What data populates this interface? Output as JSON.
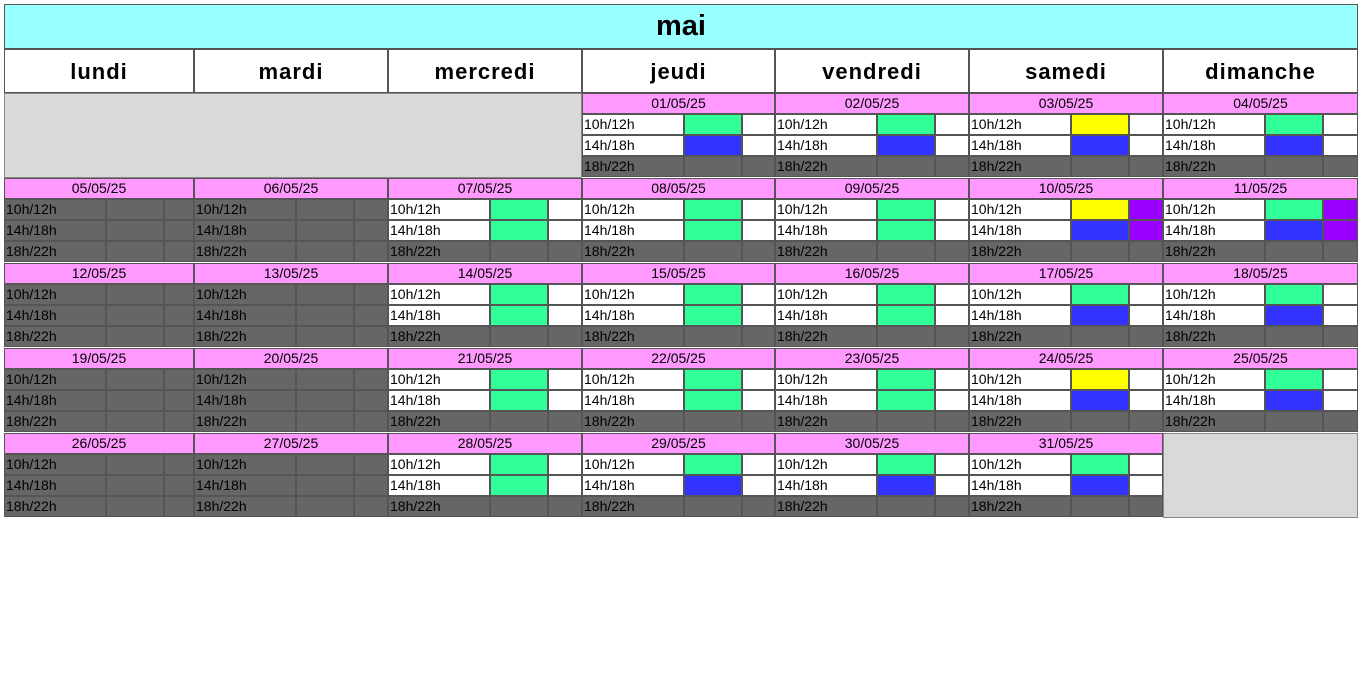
{
  "month_title": "mai",
  "weekdays": [
    "lundi",
    "mardi",
    "mercredi",
    "jeudi",
    "vendredi",
    "samedi",
    "dimanche"
  ],
  "colors": {
    "closed": "#666666",
    "open": "#ffffff",
    "green": "#33ff99",
    "blue": "#3333ff",
    "yellow": "#ffff00",
    "purple": "#9900ff",
    "header_month": "#99ffff",
    "date_bar": "#ff99ff",
    "blank": "#d9d9d9"
  },
  "slot_labels": [
    "10h/12h",
    "14h/18h",
    "18h/22h"
  ],
  "weeks": [
    [
      null,
      null,
      null,
      {
        "date": "01/05/25",
        "slots": [
          {
            "open": true,
            "c1": "green",
            "c2": "open"
          },
          {
            "open": true,
            "c1": "blue",
            "c2": "open"
          },
          {
            "open": false,
            "c1": "closed",
            "c2": "closed"
          }
        ]
      },
      {
        "date": "02/05/25",
        "slots": [
          {
            "open": true,
            "c1": "green",
            "c2": "open"
          },
          {
            "open": true,
            "c1": "blue",
            "c2": "open"
          },
          {
            "open": false,
            "c1": "closed",
            "c2": "closed"
          }
        ]
      },
      {
        "date": "03/05/25",
        "slots": [
          {
            "open": true,
            "c1": "yellow",
            "c2": "open"
          },
          {
            "open": true,
            "c1": "blue",
            "c2": "open"
          },
          {
            "open": false,
            "c1": "closed",
            "c2": "closed"
          }
        ]
      },
      {
        "date": "04/05/25",
        "slots": [
          {
            "open": true,
            "c1": "green",
            "c2": "open"
          },
          {
            "open": true,
            "c1": "blue",
            "c2": "open"
          },
          {
            "open": false,
            "c1": "closed",
            "c2": "closed"
          }
        ]
      }
    ],
    [
      {
        "date": "05/05/25",
        "slots": [
          {
            "open": false,
            "c1": "closed",
            "c2": "closed"
          },
          {
            "open": false,
            "c1": "closed",
            "c2": "closed"
          },
          {
            "open": false,
            "c1": "closed",
            "c2": "closed"
          }
        ]
      },
      {
        "date": "06/05/25",
        "slots": [
          {
            "open": false,
            "c1": "closed",
            "c2": "closed"
          },
          {
            "open": false,
            "c1": "closed",
            "c2": "closed"
          },
          {
            "open": false,
            "c1": "closed",
            "c2": "closed"
          }
        ]
      },
      {
        "date": "07/05/25",
        "slots": [
          {
            "open": true,
            "c1": "green",
            "c2": "open"
          },
          {
            "open": true,
            "c1": "green",
            "c2": "open"
          },
          {
            "open": false,
            "c1": "closed",
            "c2": "closed"
          }
        ]
      },
      {
        "date": "08/05/25",
        "slots": [
          {
            "open": true,
            "c1": "green",
            "c2": "open"
          },
          {
            "open": true,
            "c1": "green",
            "c2": "open"
          },
          {
            "open": false,
            "c1": "closed",
            "c2": "closed"
          }
        ]
      },
      {
        "date": "09/05/25",
        "slots": [
          {
            "open": true,
            "c1": "green",
            "c2": "open"
          },
          {
            "open": true,
            "c1": "green",
            "c2": "open"
          },
          {
            "open": false,
            "c1": "closed",
            "c2": "closed"
          }
        ]
      },
      {
        "date": "10/05/25",
        "slots": [
          {
            "open": true,
            "c1": "yellow",
            "c2": "purple"
          },
          {
            "open": true,
            "c1": "blue",
            "c2": "purple"
          },
          {
            "open": false,
            "c1": "closed",
            "c2": "closed"
          }
        ]
      },
      {
        "date": "11/05/25",
        "slots": [
          {
            "open": true,
            "c1": "green",
            "c2": "purple"
          },
          {
            "open": true,
            "c1": "blue",
            "c2": "purple"
          },
          {
            "open": false,
            "c1": "closed",
            "c2": "closed"
          }
        ]
      }
    ],
    [
      {
        "date": "12/05/25",
        "slots": [
          {
            "open": false,
            "c1": "closed",
            "c2": "closed"
          },
          {
            "open": false,
            "c1": "closed",
            "c2": "closed"
          },
          {
            "open": false,
            "c1": "closed",
            "c2": "closed"
          }
        ]
      },
      {
        "date": "13/05/25",
        "slots": [
          {
            "open": false,
            "c1": "closed",
            "c2": "closed"
          },
          {
            "open": false,
            "c1": "closed",
            "c2": "closed"
          },
          {
            "open": false,
            "c1": "closed",
            "c2": "closed"
          }
        ]
      },
      {
        "date": "14/05/25",
        "slots": [
          {
            "open": true,
            "c1": "green",
            "c2": "open"
          },
          {
            "open": true,
            "c1": "green",
            "c2": "open"
          },
          {
            "open": false,
            "c1": "closed",
            "c2": "closed"
          }
        ]
      },
      {
        "date": "15/05/25",
        "slots": [
          {
            "open": true,
            "c1": "green",
            "c2": "open"
          },
          {
            "open": true,
            "c1": "green",
            "c2": "open"
          },
          {
            "open": false,
            "c1": "closed",
            "c2": "closed"
          }
        ]
      },
      {
        "date": "16/05/25",
        "slots": [
          {
            "open": true,
            "c1": "green",
            "c2": "open"
          },
          {
            "open": true,
            "c1": "green",
            "c2": "open"
          },
          {
            "open": false,
            "c1": "closed",
            "c2": "closed"
          }
        ]
      },
      {
        "date": "17/05/25",
        "slots": [
          {
            "open": true,
            "c1": "green",
            "c2": "open"
          },
          {
            "open": true,
            "c1": "blue",
            "c2": "open"
          },
          {
            "open": false,
            "c1": "closed",
            "c2": "closed"
          }
        ]
      },
      {
        "date": "18/05/25",
        "slots": [
          {
            "open": true,
            "c1": "green",
            "c2": "open"
          },
          {
            "open": true,
            "c1": "blue",
            "c2": "open"
          },
          {
            "open": false,
            "c1": "closed",
            "c2": "closed"
          }
        ]
      }
    ],
    [
      {
        "date": "19/05/25",
        "slots": [
          {
            "open": false,
            "c1": "closed",
            "c2": "closed"
          },
          {
            "open": false,
            "c1": "closed",
            "c2": "closed"
          },
          {
            "open": false,
            "c1": "closed",
            "c2": "closed"
          }
        ]
      },
      {
        "date": "20/05/25",
        "slots": [
          {
            "open": false,
            "c1": "closed",
            "c2": "closed"
          },
          {
            "open": false,
            "c1": "closed",
            "c2": "closed"
          },
          {
            "open": false,
            "c1": "closed",
            "c2": "closed"
          }
        ]
      },
      {
        "date": "21/05/25",
        "slots": [
          {
            "open": true,
            "c1": "green",
            "c2": "open"
          },
          {
            "open": true,
            "c1": "green",
            "c2": "open"
          },
          {
            "open": false,
            "c1": "closed",
            "c2": "closed"
          }
        ]
      },
      {
        "date": "22/05/25",
        "slots": [
          {
            "open": true,
            "c1": "green",
            "c2": "open"
          },
          {
            "open": true,
            "c1": "green",
            "c2": "open"
          },
          {
            "open": false,
            "c1": "closed",
            "c2": "closed"
          }
        ]
      },
      {
        "date": "23/05/25",
        "slots": [
          {
            "open": true,
            "c1": "green",
            "c2": "open"
          },
          {
            "open": true,
            "c1": "green",
            "c2": "open"
          },
          {
            "open": false,
            "c1": "closed",
            "c2": "closed"
          }
        ]
      },
      {
        "date": "24/05/25",
        "slots": [
          {
            "open": true,
            "c1": "yellow",
            "c2": "open"
          },
          {
            "open": true,
            "c1": "blue",
            "c2": "open"
          },
          {
            "open": false,
            "c1": "closed",
            "c2": "closed"
          }
        ]
      },
      {
        "date": "25/05/25",
        "slots": [
          {
            "open": true,
            "c1": "green",
            "c2": "open"
          },
          {
            "open": true,
            "c1": "blue",
            "c2": "open"
          },
          {
            "open": false,
            "c1": "closed",
            "c2": "closed"
          }
        ]
      }
    ],
    [
      {
        "date": "26/05/25",
        "slots": [
          {
            "open": false,
            "c1": "closed",
            "c2": "closed"
          },
          {
            "open": false,
            "c1": "closed",
            "c2": "closed"
          },
          {
            "open": false,
            "c1": "closed",
            "c2": "closed"
          }
        ]
      },
      {
        "date": "27/05/25",
        "slots": [
          {
            "open": false,
            "c1": "closed",
            "c2": "closed"
          },
          {
            "open": false,
            "c1": "closed",
            "c2": "closed"
          },
          {
            "open": false,
            "c1": "closed",
            "c2": "closed"
          }
        ]
      },
      {
        "date": "28/05/25",
        "slots": [
          {
            "open": true,
            "c1": "green",
            "c2": "open"
          },
          {
            "open": true,
            "c1": "green",
            "c2": "open"
          },
          {
            "open": false,
            "c1": "closed",
            "c2": "closed"
          }
        ]
      },
      {
        "date": "29/05/25",
        "slots": [
          {
            "open": true,
            "c1": "green",
            "c2": "open"
          },
          {
            "open": true,
            "c1": "blue",
            "c2": "open"
          },
          {
            "open": false,
            "c1": "closed",
            "c2": "closed"
          }
        ]
      },
      {
        "date": "30/05/25",
        "slots": [
          {
            "open": true,
            "c1": "green",
            "c2": "open"
          },
          {
            "open": true,
            "c1": "blue",
            "c2": "open"
          },
          {
            "open": false,
            "c1": "closed",
            "c2": "closed"
          }
        ]
      },
      {
        "date": "31/05/25",
        "slots": [
          {
            "open": true,
            "c1": "green",
            "c2": "open"
          },
          {
            "open": true,
            "c1": "blue",
            "c2": "open"
          },
          {
            "open": false,
            "c1": "closed",
            "c2": "closed"
          }
        ]
      },
      null
    ]
  ]
}
